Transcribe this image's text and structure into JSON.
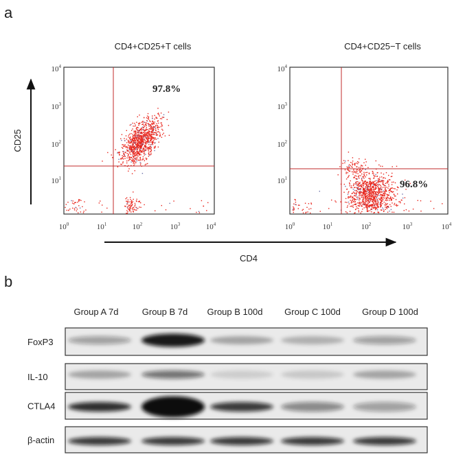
{
  "panel_a": {
    "label": "a",
    "plots": [
      {
        "title": "CD4+CD25+T cells",
        "percentage": "97.8%"
      },
      {
        "title": "CD4+CD25−T cells",
        "percentage": "96.8%"
      }
    ],
    "y_axis_label": "CD25",
    "x_axis_label": "CD4",
    "y_ticks": [
      {
        "base": "10",
        "exp": "4"
      },
      {
        "base": "10",
        "exp": "3"
      },
      {
        "base": "10",
        "exp": "2"
      },
      {
        "base": "10",
        "exp": "1"
      }
    ],
    "x_ticks": [
      {
        "base": "10",
        "exp": "0"
      },
      {
        "base": "10",
        "exp": "1"
      },
      {
        "base": "10",
        "exp": "2"
      },
      {
        "base": "10",
        "exp": "3"
      },
      {
        "base": "10",
        "exp": "4"
      }
    ]
  },
  "panel_b": {
    "label": "b",
    "groups": [
      "Group A 7d",
      "Group B 7d",
      "Group B 100d",
      "Group C 100d",
      "Group D 100d"
    ],
    "rows": [
      "FoxP3",
      "IL-10",
      "CTLA4",
      "β-actin"
    ]
  }
}
